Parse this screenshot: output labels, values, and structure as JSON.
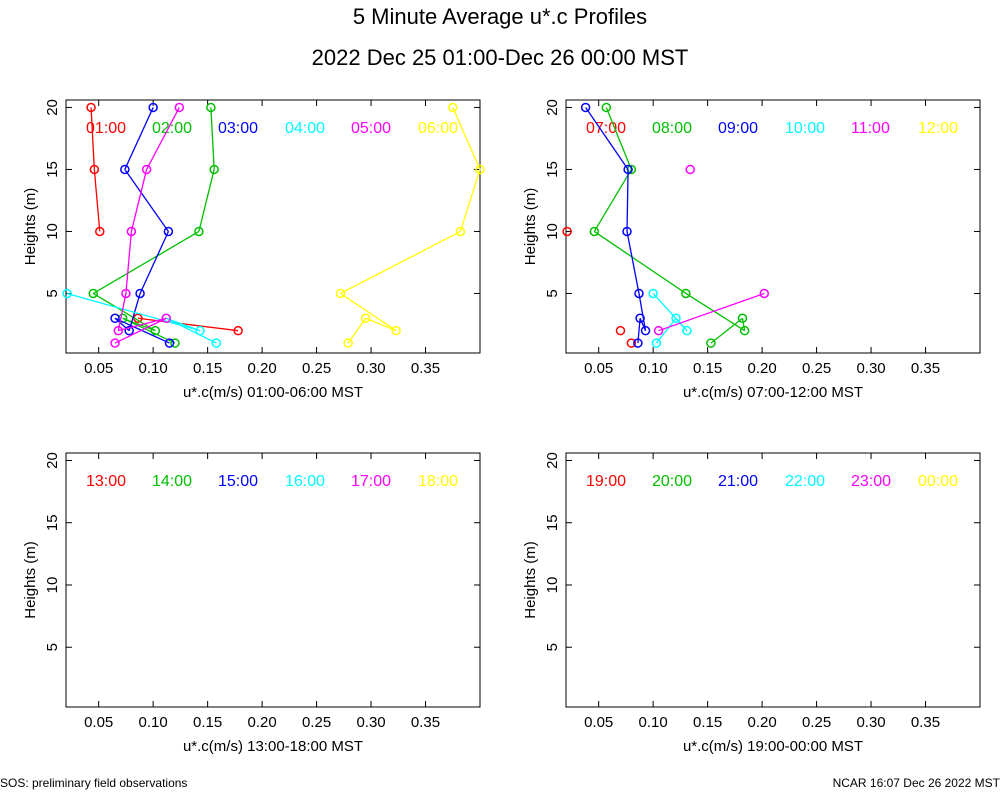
{
  "title": "5 Minute Average u*.c Profiles",
  "subtitle": "2022 Dec 25 01:00-Dec 26 00:00 MST",
  "footer_left": "SOS: preliminary field observations",
  "footer_right": "NCAR 16:07 Dec 26 2022 MST",
  "colors": [
    "#ff0000",
    "#00c000",
    "#0000ff",
    "#00ffff",
    "#ff00ff",
    "#ffff00"
  ],
  "chart_data": [
    {
      "type": "scatter",
      "xlabel": "u*.c(m/s) 01:00-06:00 MST",
      "ylabel": "Heights (m)",
      "xlim": [
        0.02,
        0.4
      ],
      "ylim": [
        0.2,
        20.6
      ],
      "xticks": [
        "0.05",
        "0.10",
        "0.15",
        "0.20",
        "0.25",
        "0.30",
        "0.35"
      ],
      "yticks": [
        "5",
        "10",
        "15",
        "20"
      ],
      "series": [
        {
          "name": "01:00",
          "x": [
            0.043,
            0.046,
            0.051,
            null,
            0.178,
            0.086,
            null
          ],
          "y": [
            20,
            15,
            10,
            5,
            2,
            3,
            1
          ]
        },
        {
          "name": "02:00",
          "x": [
            0.153,
            0.156,
            0.142,
            0.045,
            0.102,
            0.072,
            0.12
          ],
          "y": [
            20,
            15,
            10,
            5,
            2,
            3,
            1
          ]
        },
        {
          "name": "03:00",
          "x": [
            0.1,
            0.074,
            0.114,
            0.088,
            0.078,
            0.065,
            0.115
          ],
          "y": [
            20,
            15,
            10,
            5,
            2,
            3,
            1
          ]
        },
        {
          "name": "04:00",
          "x": [
            null,
            null,
            null,
            0.021,
            0.143,
            0.112,
            0.158
          ],
          "y": [
            20,
            15,
            10,
            5,
            2,
            3,
            1
          ]
        },
        {
          "name": "05:00",
          "x": [
            0.124,
            0.094,
            0.08,
            0.075,
            0.068,
            0.112,
            0.065
          ],
          "y": [
            20,
            15,
            10,
            5,
            2,
            3,
            1
          ]
        },
        {
          "name": "06:00",
          "x": [
            0.375,
            0.4,
            0.382,
            0.272,
            0.323,
            0.295,
            0.279
          ],
          "y": [
            20,
            15,
            10,
            5,
            2,
            3,
            1
          ]
        }
      ]
    },
    {
      "type": "scatter",
      "xlabel": "u*.c(m/s) 07:00-12:00 MST",
      "ylabel": "Heights (m)",
      "xlim": [
        0.02,
        0.4
      ],
      "ylim": [
        0.2,
        20.6
      ],
      "xticks": [
        "0.05",
        "0.10",
        "0.15",
        "0.20",
        "0.25",
        "0.30",
        "0.35"
      ],
      "yticks": [
        "5",
        "10",
        "15",
        "20"
      ],
      "series": [
        {
          "name": "07:00",
          "x": [
            null,
            null,
            0.021,
            null,
            0.07,
            null,
            0.08
          ],
          "y": [
            20,
            15,
            10,
            5,
            2,
            3,
            1
          ]
        },
        {
          "name": "08:00",
          "x": [
            0.057,
            0.08,
            0.046,
            0.13,
            0.184,
            0.182,
            0.153
          ],
          "y": [
            20,
            15,
            10,
            5,
            2,
            3,
            1
          ]
        },
        {
          "name": "09:00",
          "x": [
            0.038,
            0.077,
            0.076,
            0.087,
            0.093,
            0.088,
            0.086
          ],
          "y": [
            20,
            15,
            10,
            5,
            2,
            3,
            1
          ]
        },
        {
          "name": "10:00",
          "x": [
            null,
            null,
            null,
            0.1,
            0.131,
            0.121,
            0.103
          ],
          "y": [
            20,
            15,
            10,
            5,
            2,
            3,
            1
          ]
        },
        {
          "name": "11:00",
          "x": [
            null,
            0.134,
            null,
            0.202,
            0.105,
            null,
            null
          ],
          "y": [
            20,
            15,
            10,
            5,
            2,
            3,
            1
          ]
        },
        {
          "name": "12:00",
          "x": [
            null,
            null,
            null,
            null,
            null,
            null,
            null
          ],
          "y": [
            20,
            15,
            10,
            5,
            2,
            3,
            1
          ]
        }
      ]
    },
    {
      "type": "scatter",
      "xlabel": "u*.c(m/s) 13:00-18:00 MST",
      "ylabel": "Heights (m)",
      "xlim": [
        0.02,
        0.4
      ],
      "ylim": [
        0.2,
        20.6
      ],
      "xticks": [
        "0.05",
        "0.10",
        "0.15",
        "0.20",
        "0.25",
        "0.30",
        "0.35"
      ],
      "yticks": [
        "5",
        "10",
        "15",
        "20"
      ],
      "series": [
        {
          "name": "13:00",
          "x": [],
          "y": []
        },
        {
          "name": "14:00",
          "x": [],
          "y": []
        },
        {
          "name": "15:00",
          "x": [],
          "y": []
        },
        {
          "name": "16:00",
          "x": [],
          "y": []
        },
        {
          "name": "17:00",
          "x": [],
          "y": []
        },
        {
          "name": "18:00",
          "x": [],
          "y": []
        }
      ]
    },
    {
      "type": "scatter",
      "xlabel": "u*.c(m/s) 19:00-00:00 MST",
      "ylabel": "Heights (m)",
      "xlim": [
        0.02,
        0.4
      ],
      "ylim": [
        0.2,
        20.6
      ],
      "xticks": [
        "0.05",
        "0.10",
        "0.15",
        "0.20",
        "0.25",
        "0.30",
        "0.35"
      ],
      "yticks": [
        "5",
        "10",
        "15",
        "20"
      ],
      "series": [
        {
          "name": "19:00",
          "x": [],
          "y": []
        },
        {
          "name": "20:00",
          "x": [],
          "y": []
        },
        {
          "name": "21:00",
          "x": [],
          "y": []
        },
        {
          "name": "22:00",
          "x": [],
          "y": []
        },
        {
          "name": "23:00",
          "x": [],
          "y": []
        },
        {
          "name": "00:00",
          "x": [],
          "y": []
        }
      ]
    }
  ]
}
